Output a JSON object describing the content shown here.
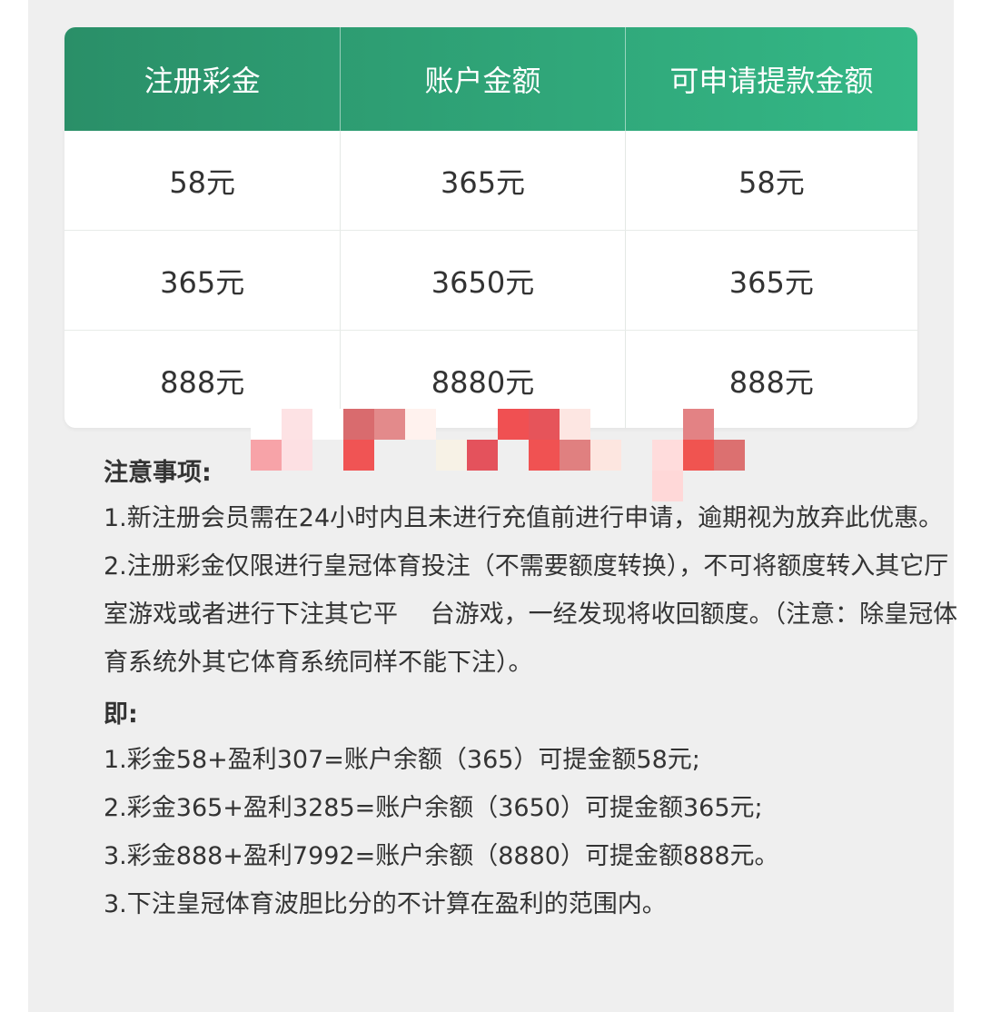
{
  "table": {
    "headers": [
      "注册彩金",
      "账户金额",
      "可申请提款金额"
    ],
    "rows": [
      [
        "58元",
        "365元",
        "58元"
      ],
      [
        "365元",
        "3650元",
        "365元"
      ],
      [
        "888元",
        "8880元",
        "888元"
      ]
    ],
    "header_color_start": "#2a8f68",
    "header_color_end": "#34b886"
  },
  "notes": {
    "title": "注意事项:",
    "items": [
      "1.新注册会员需在24小时内且未进行充值前进行申请，逾期视为放弃此优惠。",
      "2.注册彩金仅限进行皇冠体育投注（不需要额度转换），不可将额度转入其它厅室游戏或者进行下注其它平　 台游戏，一经发现将收回额度。（注意：除皇冠体育系统外其它体育系统同样不能下注）。"
    ],
    "example_title": "即:",
    "examples": [
      "1.彩金58+盈利307=账户余额（365）可提金额58元;",
      "2.彩金365+盈利3285=账户余额（3650）可提金额365元;",
      "3.彩金888+盈利7992=账户余额（8880）可提金额888元。",
      "3.下注皇冠体育波胆比分的不计算在盈利的范围内。"
    ]
  }
}
